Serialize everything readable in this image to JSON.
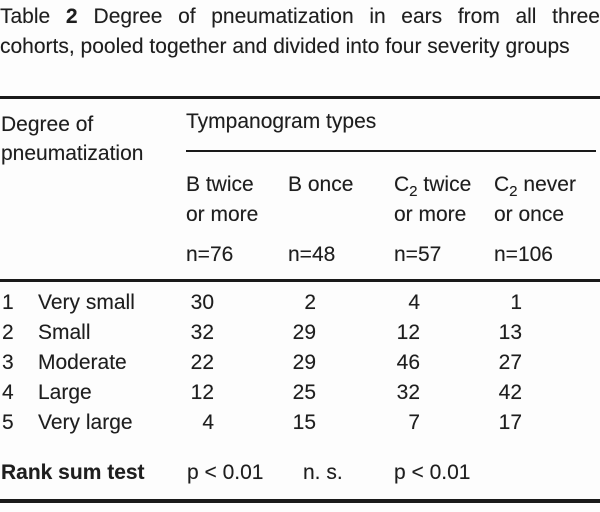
{
  "caption": {
    "label": "Table",
    "number": "2",
    "text": "Degree of pneumatization in ears from all three cohorts, pooled together and divided into four severity groups"
  },
  "header": {
    "row_header": "Degree of pneumatization",
    "group_header": "Tympanogram types",
    "columns": [
      {
        "prefix": "B",
        "sub": "",
        "rest": " twice",
        "line2": "or more",
        "n": "n=76"
      },
      {
        "prefix": "B",
        "sub": "",
        "rest": " once",
        "line2": "",
        "n": "n=48"
      },
      {
        "prefix": "C",
        "sub": "2",
        "rest": " twice",
        "line2": "or more",
        "n": "n=57"
      },
      {
        "prefix": "C",
        "sub": "2",
        "rest": " never",
        "line2": "or once",
        "n": "n=106"
      }
    ]
  },
  "rows": [
    {
      "num": "1",
      "label": "Very small",
      "values": [
        "30",
        "2",
        "4",
        "1"
      ]
    },
    {
      "num": "2",
      "label": "Small",
      "values": [
        "32",
        "29",
        "12",
        "13"
      ]
    },
    {
      "num": "3",
      "label": "Moderate",
      "values": [
        "22",
        "29",
        "46",
        "27"
      ]
    },
    {
      "num": "4",
      "label": "Large",
      "values": [
        "12",
        "25",
        "32",
        "42"
      ]
    },
    {
      "num": "5",
      "label": "Very large",
      "values": [
        "4",
        "15",
        "7",
        "17"
      ]
    }
  ],
  "footer": {
    "label": "Rank sum test",
    "values": [
      "p < 0.01",
      "n. s.",
      "p < 0.01",
      ""
    ]
  },
  "colors": {
    "background": "#fdfdfd",
    "text": "#1e1e1e",
    "rule": "#1a1a1a"
  }
}
